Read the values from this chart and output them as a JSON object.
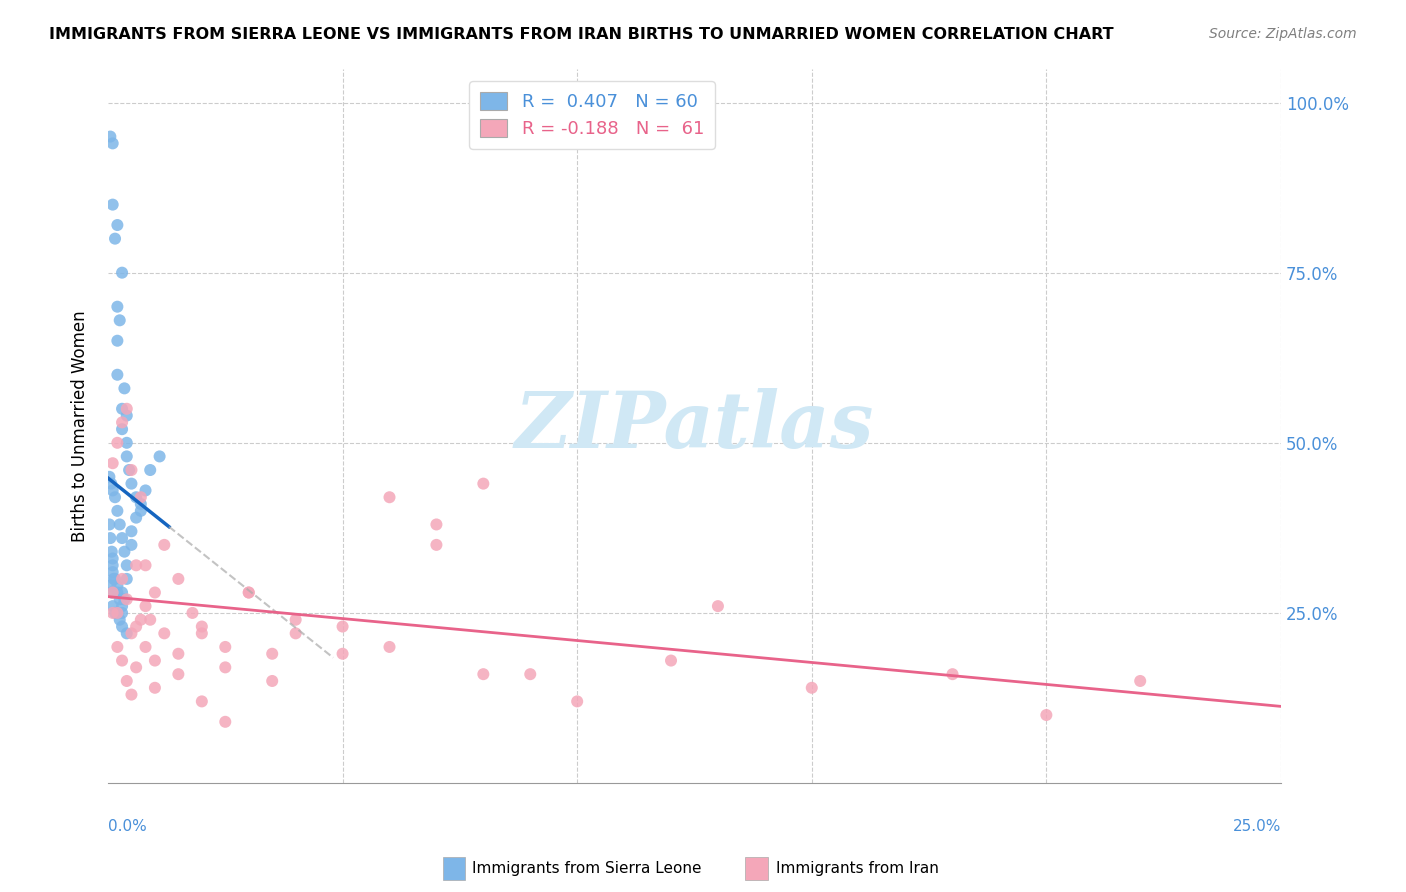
{
  "title": "IMMIGRANTS FROM SIERRA LEONE VS IMMIGRANTS FROM IRAN BIRTHS TO UNMARRIED WOMEN CORRELATION CHART",
  "source": "Source: ZipAtlas.com",
  "ylabel": "Births to Unmarried Women",
  "x_range": [
    0.0,
    0.25
  ],
  "y_range": [
    0.0,
    1.05
  ],
  "color_blue": "#7EB6E8",
  "color_pink": "#F4A7B9",
  "color_blue_dark": "#4A90D9",
  "color_pink_dark": "#E8638A",
  "color_trendline_blue": "#1565C0",
  "color_trendline_pink": "#E8638A",
  "watermark_color": "#D0E8F5",
  "sl_x": [
    0.0005,
    0.001,
    0.001,
    0.0015,
    0.002,
    0.002,
    0.002,
    0.002,
    0.0025,
    0.003,
    0.003,
    0.003,
    0.0035,
    0.004,
    0.004,
    0.004,
    0.0045,
    0.005,
    0.006,
    0.007,
    0.0003,
    0.0005,
    0.0008,
    0.001,
    0.001,
    0.0012,
    0.0015,
    0.002,
    0.002,
    0.0025,
    0.003,
    0.003,
    0.003,
    0.0035,
    0.004,
    0.001,
    0.0005,
    0.0008,
    0.001,
    0.0015,
    0.002,
    0.0025,
    0.003,
    0.004,
    0.005,
    0.0003,
    0.0007,
    0.001,
    0.0015,
    0.002,
    0.0025,
    0.003,
    0.0035,
    0.004,
    0.005,
    0.006,
    0.007,
    0.008,
    0.009,
    0.011
  ],
  "sl_y": [
    0.95,
    0.94,
    0.85,
    0.8,
    0.82,
    0.7,
    0.65,
    0.6,
    0.68,
    0.75,
    0.55,
    0.52,
    0.58,
    0.54,
    0.5,
    0.48,
    0.46,
    0.44,
    0.42,
    0.4,
    0.38,
    0.36,
    0.34,
    0.33,
    0.31,
    0.3,
    0.3,
    0.29,
    0.28,
    0.27,
    0.28,
    0.26,
    0.25,
    0.27,
    0.3,
    0.32,
    0.29,
    0.28,
    0.26,
    0.25,
    0.25,
    0.24,
    0.23,
    0.22,
    0.35,
    0.45,
    0.44,
    0.43,
    0.42,
    0.4,
    0.38,
    0.36,
    0.34,
    0.32,
    0.37,
    0.39,
    0.41,
    0.43,
    0.46,
    0.48
  ],
  "iran_x": [
    0.001,
    0.002,
    0.003,
    0.004,
    0.005,
    0.006,
    0.007,
    0.008,
    0.009,
    0.01,
    0.012,
    0.015,
    0.018,
    0.02,
    0.025,
    0.03,
    0.035,
    0.04,
    0.05,
    0.06,
    0.07,
    0.08,
    0.09,
    0.1,
    0.12,
    0.13,
    0.15,
    0.18,
    0.2,
    0.22,
    0.001,
    0.002,
    0.003,
    0.004,
    0.005,
    0.006,
    0.007,
    0.008,
    0.01,
    0.012,
    0.015,
    0.02,
    0.025,
    0.03,
    0.035,
    0.04,
    0.05,
    0.06,
    0.07,
    0.08,
    0.001,
    0.002,
    0.003,
    0.004,
    0.005,
    0.006,
    0.008,
    0.01,
    0.015,
    0.02,
    0.025
  ],
  "iran_y": [
    0.47,
    0.5,
    0.53,
    0.55,
    0.46,
    0.23,
    0.42,
    0.32,
    0.24,
    0.28,
    0.35,
    0.3,
    0.25,
    0.22,
    0.2,
    0.28,
    0.19,
    0.24,
    0.23,
    0.2,
    0.38,
    0.44,
    0.16,
    0.12,
    0.18,
    0.26,
    0.14,
    0.16,
    0.1,
    0.15,
    0.28,
    0.25,
    0.3,
    0.27,
    0.22,
    0.32,
    0.24,
    0.26,
    0.18,
    0.22,
    0.19,
    0.23,
    0.17,
    0.28,
    0.15,
    0.22,
    0.19,
    0.42,
    0.35,
    0.16,
    0.25,
    0.2,
    0.18,
    0.15,
    0.13,
    0.17,
    0.2,
    0.14,
    0.16,
    0.12,
    0.09
  ]
}
